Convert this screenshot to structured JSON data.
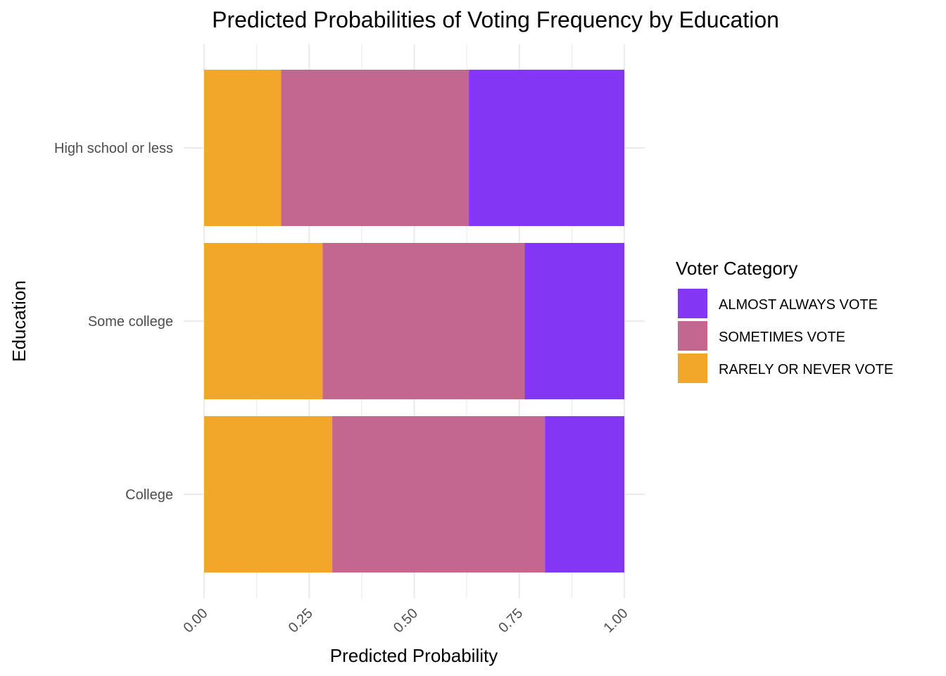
{
  "chart_data": {
    "type": "bar",
    "orientation": "horizontal",
    "stacked": true,
    "title": "Predicted Probabilities of Voting Frequency by Education",
    "xlabel": "Predicted Probability",
    "ylabel": "Education",
    "xlim": [
      0,
      1
    ],
    "x_ticks": [
      "0.00",
      "0.25",
      "0.50",
      "0.75",
      "1.00"
    ],
    "x_tick_values": [
      0,
      0.25,
      0.5,
      0.75,
      1.0
    ],
    "x_tick_rotation_deg": 45,
    "categories": [
      "High school or less",
      "Some college",
      "College"
    ],
    "grid": true,
    "legend": {
      "title": "Voter Category",
      "placement": "right"
    },
    "series": [
      {
        "name": "RARELY OR NEVER VOTE",
        "color": "#F2A72B",
        "values": [
          0.183,
          0.282,
          0.305
        ]
      },
      {
        "name": "SOMETIMES VOTE",
        "color": "#C4678E",
        "values": [
          0.447,
          0.481,
          0.506
        ]
      },
      {
        "name": "ALMOST ALWAYS VOTE",
        "color": "#8436F5",
        "values": [
          0.37,
          0.237,
          0.189
        ]
      }
    ],
    "legend_order": [
      "ALMOST ALWAYS VOTE",
      "SOMETIMES VOTE",
      "RARELY OR NEVER VOTE"
    ]
  }
}
